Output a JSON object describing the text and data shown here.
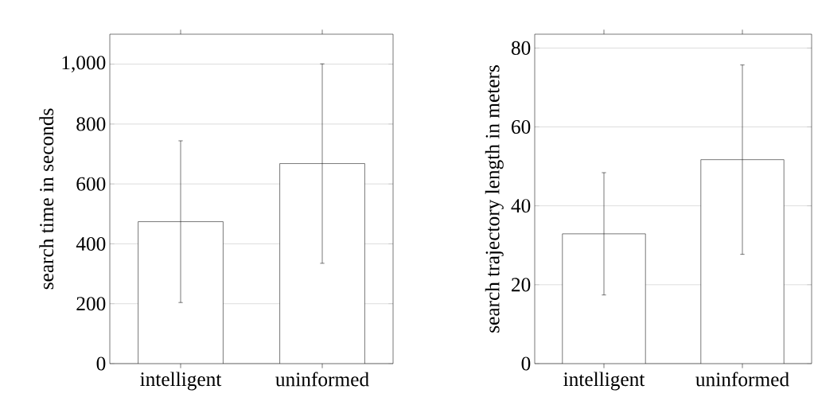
{
  "chart_data": [
    {
      "type": "bar",
      "categories": [
        "intelligent",
        "uninformed"
      ],
      "values": [
        474,
        668
      ],
      "errors": [
        270,
        333
      ],
      "color": "#ffffff",
      "ylabel": "search time in seconds",
      "ylim": [
        0,
        1100
      ],
      "yticks": [
        0,
        200,
        400,
        600,
        800,
        {
          "value": 1000,
          "label": "1,000"
        }
      ],
      "grid": "y"
    },
    {
      "type": "bar",
      "categories": [
        "intelligent",
        "uninformed"
      ],
      "values": [
        32.9,
        51.7
      ],
      "errors": [
        15.5,
        24
      ],
      "color": "#ffffff",
      "ylabel": "search trajectory length in meters",
      "ylim": [
        0,
        83.5
      ],
      "yticks": [
        0,
        20,
        40,
        60,
        80
      ],
      "grid": "y"
    }
  ]
}
